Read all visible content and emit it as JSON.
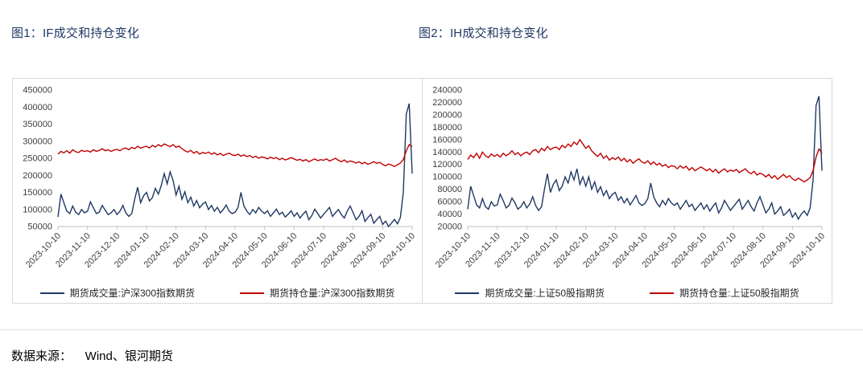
{
  "page": {
    "figure1_title": "图1：IF成交和持仓变化",
    "figure2_title": "图2：IH成交和持仓变化",
    "source_text": "数据来源：    Wind、银河期货"
  },
  "colors": {
    "volume_line": "#1f3864",
    "open_interest_line": "#c00000",
    "axis": "#bfbfbf",
    "tick_text": "#404040",
    "title_text": "#1f3864",
    "box_border": "#d9d9d9"
  },
  "chart_data": [
    {
      "type": "line",
      "title": "图1：IF成交和持仓变化",
      "xlabel": "",
      "ylabel": "",
      "grid": false,
      "legend_position": "bottom",
      "ylim": [
        50000,
        450000
      ],
      "ytick_step": 50000,
      "categories": [
        "2023-10-10",
        "2023-11-10",
        "2023-12-10",
        "2024-01-10",
        "2024-02-10",
        "2024-03-10",
        "2024-04-10",
        "2024-05-10",
        "2024-06-10",
        "2024-07-10",
        "2024-08-10",
        "2024-09-10",
        "2024-10-10"
      ],
      "series": [
        {
          "name": "期货成交量:沪深300指数期货",
          "color": "#1f3864",
          "values": [
            78000,
            145000,
            120000,
            95000,
            88000,
            110000,
            92000,
            85000,
            100000,
            90000,
            95000,
            122000,
            105000,
            88000,
            92000,
            112000,
            98000,
            85000,
            90000,
            100000,
            85000,
            95000,
            112000,
            90000,
            80000,
            88000,
            130000,
            165000,
            120000,
            140000,
            150000,
            125000,
            135000,
            162000,
            145000,
            170000,
            205000,
            175000,
            210000,
            185000,
            142000,
            168000,
            130000,
            152000,
            120000,
            136000,
            110000,
            126000,
            105000,
            116000,
            122000,
            100000,
            112000,
            95000,
            106000,
            90000,
            100000,
            113000,
            95000,
            88000,
            92000,
            106000,
            150000,
            110000,
            95000,
            85000,
            100000,
            90000,
            106000,
            95000,
            88000,
            96000,
            80000,
            90000,
            101000,
            85000,
            92000,
            78000,
            86000,
            96000,
            80000,
            90000,
            75000,
            86000,
            95000,
            70000,
            82000,
            101000,
            88000,
            75000,
            86000,
            96000,
            106000,
            80000,
            90000,
            100000,
            85000,
            75000,
            95000,
            110000,
            90000,
            70000,
            80000,
            96000,
            65000,
            76000,
            86000,
            60000,
            70000,
            80000,
            56000,
            66000,
            50000,
            60000,
            71000,
            58000,
            76000,
            150000,
            380000,
            410000,
            205000
          ]
        },
        {
          "name": "期货持仓量:沪深300指数期货",
          "color": "#c00000",
          "values": [
            262000,
            270000,
            266000,
            272000,
            265000,
            275000,
            269000,
            267000,
            273000,
            270000,
            272000,
            268000,
            275000,
            270000,
            273000,
            278000,
            272000,
            275000,
            270000,
            274000,
            276000,
            272000,
            278000,
            280000,
            275000,
            282000,
            278000,
            285000,
            280000,
            283000,
            285000,
            280000,
            288000,
            283000,
            290000,
            285000,
            292000,
            288000,
            284000,
            290000,
            282000,
            286000,
            278000,
            272000,
            268000,
            273000,
            265000,
            270000,
            262000,
            267000,
            264000,
            268000,
            262000,
            266000,
            260000,
            264000,
            258000,
            262000,
            265000,
            260000,
            258000,
            262000,
            256000,
            260000,
            255000,
            258000,
            252000,
            256000,
            250000,
            254000,
            252000,
            248000,
            253000,
            249000,
            252000,
            246000,
            250000,
            245000,
            248000,
            252000,
            248000,
            244000,
            247000,
            242000,
            246000,
            240000,
            244000,
            248000,
            243000,
            246000,
            244000,
            248000,
            242000,
            246000,
            250000,
            244000,
            240000,
            245000,
            238000,
            242000,
            240000,
            236000,
            240000,
            234000,
            238000,
            232000,
            236000,
            240000,
            235000,
            238000,
            232000,
            228000,
            233000,
            230000,
            226000,
            231000,
            236000,
            246000,
            272000,
            290000,
            284000
          ]
        }
      ]
    },
    {
      "type": "line",
      "title": "图2：IH成交和持仓变化",
      "xlabel": "",
      "ylabel": "",
      "grid": false,
      "legend_position": "bottom",
      "ylim": [
        20000,
        240000
      ],
      "ytick_step": 20000,
      "categories": [
        "2023-10-10",
        "2023-11-10",
        "2023-12-10",
        "2024-01-10",
        "2024-02-10",
        "2024-03-10",
        "2024-04-10",
        "2024-05-10",
        "2024-06-10",
        "2024-07-10",
        "2024-08-10",
        "2024-09-10",
        "2024-10-10"
      ],
      "series": [
        {
          "name": "期货成交量:上证50股指期货",
          "color": "#1f3864",
          "values": [
            48000,
            85000,
            70000,
            55000,
            50000,
            65000,
            52000,
            48000,
            60000,
            53000,
            55000,
            72000,
            62000,
            50000,
            54000,
            66000,
            58000,
            48000,
            52000,
            60000,
            50000,
            56000,
            68000,
            54000,
            46000,
            52000,
            80000,
            105000,
            75000,
            88000,
            95000,
            78000,
            85000,
            100000,
            90000,
            108000,
            95000,
            113000,
            88000,
            100000,
            85000,
            100000,
            80000,
            92000,
            75000,
            84000,
            70000,
            78000,
            65000,
            72000,
            75000,
            62000,
            68000,
            58000,
            65000,
            55000,
            62000,
            70000,
            58000,
            54000,
            57000,
            65000,
            90000,
            68000,
            58000,
            52000,
            62000,
            55000,
            65000,
            58000,
            54000,
            58000,
            48000,
            55000,
            62000,
            52000,
            56000,
            46000,
            52000,
            58000,
            48000,
            55000,
            45000,
            52000,
            58000,
            42000,
            50000,
            62000,
            54000,
            46000,
            52000,
            58000,
            64000,
            48000,
            55000,
            62000,
            52000,
            45000,
            58000,
            68000,
            55000,
            42000,
            48000,
            58000,
            40000,
            45000,
            52000,
            38000,
            42000,
            48000,
            35000,
            42000,
            32000,
            40000,
            45000,
            38000,
            50000,
            95000,
            215000,
            230000,
            110000
          ]
        },
        {
          "name": "期货持仓量:上证50股指期货",
          "color": "#c00000",
          "values": [
            128000,
            135000,
            131000,
            138000,
            130000,
            140000,
            134000,
            131000,
            137000,
            133000,
            136000,
            132000,
            138000,
            134000,
            137000,
            142000,
            136000,
            139000,
            134000,
            138000,
            140000,
            136000,
            142000,
            144000,
            139000,
            146000,
            142000,
            149000,
            144000,
            147000,
            148000,
            144000,
            151000,
            147000,
            153000,
            149000,
            156000,
            152000,
            160000,
            153000,
            146000,
            150000,
            142000,
            137000,
            133000,
            138000,
            130000,
            134000,
            127000,
            131000,
            128000,
            132000,
            126000,
            130000,
            124000,
            128000,
            122000,
            126000,
            129000,
            124000,
            122000,
            126000,
            120000,
            124000,
            119000,
            122000,
            117000,
            120000,
            115000,
            118000,
            117000,
            113000,
            118000,
            114000,
            117000,
            111000,
            115000,
            110000,
            113000,
            116000,
            113000,
            110000,
            113000,
            108000,
            112000,
            106000,
            110000,
            113000,
            108000,
            111000,
            109000,
            112000,
            107000,
            110000,
            113000,
            108000,
            105000,
            109000,
            103000,
            106000,
            104000,
            100000,
            104000,
            98000,
            102000,
            96000,
            100000,
            104000,
            99000,
            102000,
            97000,
            94000,
            98000,
            95000,
            92000,
            95000,
            99000,
            110000,
            132000,
            145000,
            138000
          ]
        }
      ]
    }
  ]
}
